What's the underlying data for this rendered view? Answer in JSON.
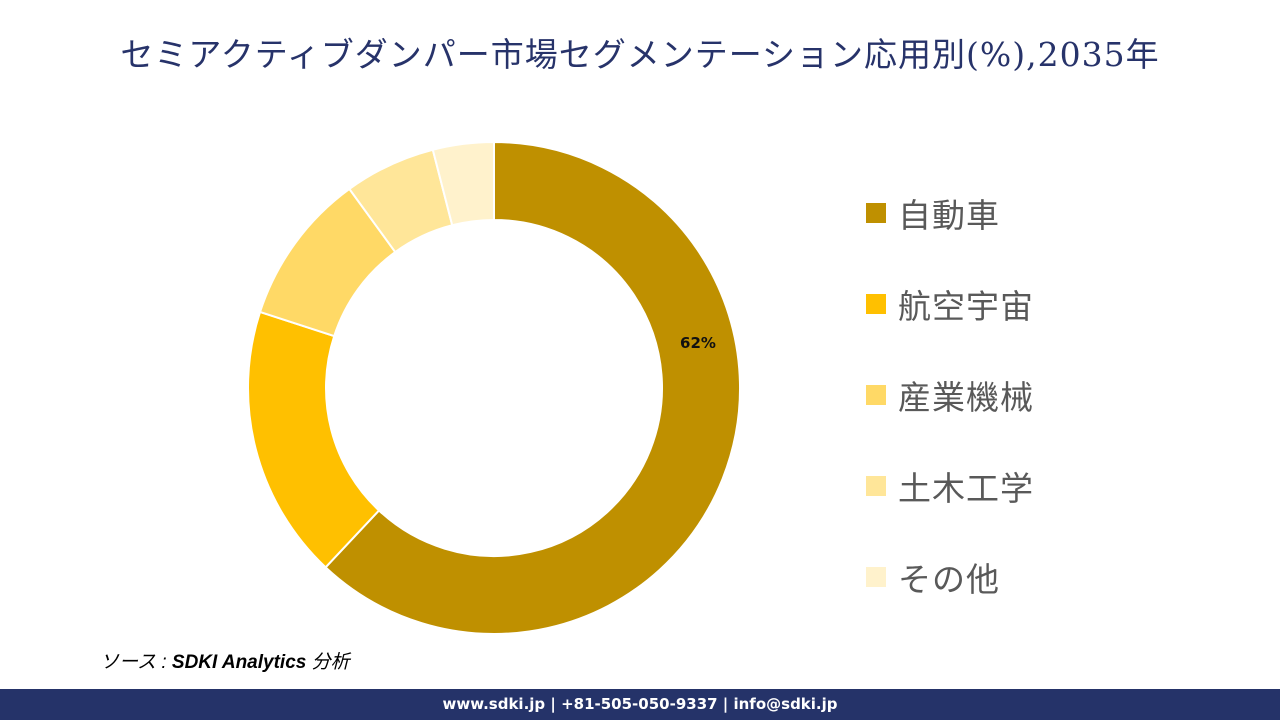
{
  "title": "セミアクティブダンパー市場セグメンテーション応用別(%),2035年",
  "chart_data": {
    "type": "pie",
    "subtype": "donut",
    "title": "セミアクティブダンパー市場セグメンテーション応用別(%),2035年",
    "categories": [
      "自動車",
      "航空宇宙",
      "産業機械",
      "土木工学",
      "その他"
    ],
    "values": [
      62,
      18,
      10,
      6,
      4
    ],
    "colors": [
      "#BF9000",
      "#FFC000",
      "#FFD966",
      "#FFE699",
      "#FFF2CC"
    ],
    "data_labels": [
      {
        "category": "自動車",
        "text": "62%"
      }
    ],
    "legend_position": "right",
    "start_angle": 0,
    "direction": "clockwise"
  },
  "legend": [
    {
      "label": "自動車",
      "color": "#BF9000"
    },
    {
      "label": "航空宇宙",
      "color": "#FFC000"
    },
    {
      "label": "産業機械",
      "color": "#FFD966"
    },
    {
      "label": "土木工学",
      "color": "#FFE699"
    },
    {
      "label": "その他",
      "color": "#FFF2CC"
    }
  ],
  "data_label": "62%",
  "source": {
    "prefix": "ソース : ",
    "name": "SDKI Analytics",
    "suffix": " 分析"
  },
  "footer": "www.sdki.jp | +81-505-050-9337 | info@sdki.jp"
}
